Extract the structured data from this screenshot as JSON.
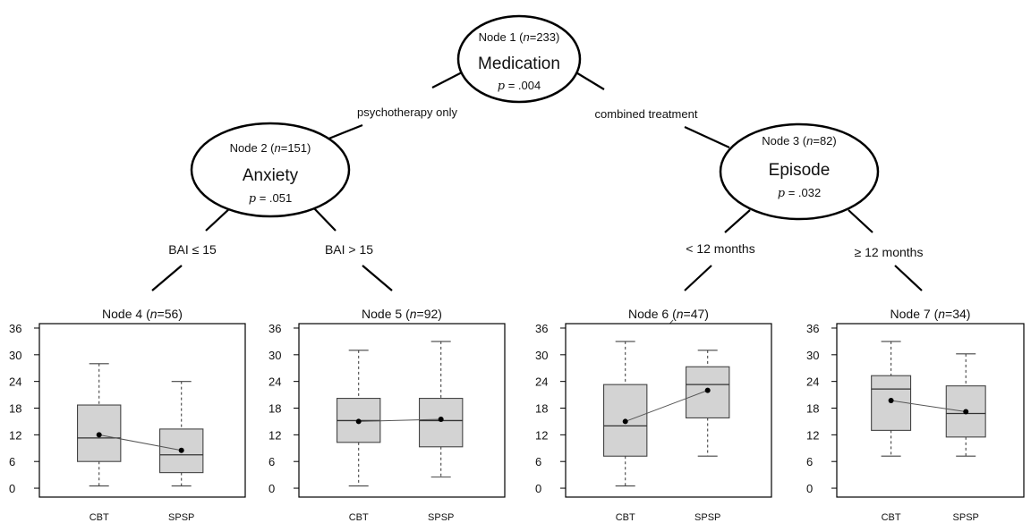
{
  "tree": {
    "root": {
      "node_label": "Node 1",
      "n": "233",
      "variable": "Medication",
      "p_value": ".004"
    },
    "left_split": {
      "label": "psychotherapy only"
    },
    "right_split": {
      "label": "combined treatment"
    },
    "node2": {
      "node_label": "Node 2",
      "n": "151",
      "variable": "Anxiety",
      "p_value": ".051",
      "left_label": "BAI ≤ 15",
      "right_label": "BAI > 15"
    },
    "node3": {
      "node_label": "Node 3",
      "n": "82",
      "variable": "Episode",
      "p_value": ".032",
      "left_label": "< 12 months",
      "right_label": "≥ 12 months"
    }
  },
  "chart_data": [
    {
      "type": "box",
      "node_label": "Node 4",
      "n": "56",
      "categories": [
        "CBT",
        "SPSP"
      ],
      "ylim": [
        -2,
        37
      ],
      "yticks": [
        0,
        6,
        12,
        18,
        24,
        30,
        36
      ],
      "boxes": [
        {
          "name": "CBT",
          "min": 0.5,
          "q1": 6,
          "median": 11.3,
          "q3": 18.7,
          "max": 28,
          "mean": 12
        },
        {
          "name": "SPSP",
          "min": 0.5,
          "q1": 3.5,
          "median": 7.5,
          "q3": 13.3,
          "max": 24,
          "mean": 8.5
        }
      ]
    },
    {
      "type": "box",
      "node_label": "Node 5",
      "n": "92",
      "categories": [
        "CBT",
        "SPSP"
      ],
      "ylim": [
        -2,
        37
      ],
      "yticks": [
        0,
        6,
        12,
        18,
        24,
        30,
        36
      ],
      "boxes": [
        {
          "name": "CBT",
          "min": 0.5,
          "q1": 10.3,
          "median": 15.2,
          "q3": 20.2,
          "max": 31,
          "mean": 15
        },
        {
          "name": "SPSP",
          "min": 2.5,
          "q1": 9.3,
          "median": 15.2,
          "q3": 20.2,
          "max": 33,
          "mean": 15.5
        }
      ]
    },
    {
      "type": "box",
      "node_label": "Node 6",
      "n": "47",
      "categories": [
        "CBT",
        "SPSP"
      ],
      "ylim": [
        -2,
        37
      ],
      "yticks": [
        0,
        6,
        12,
        18,
        24,
        30,
        36
      ],
      "boxes": [
        {
          "name": "CBT",
          "min": 0.5,
          "q1": 7.2,
          "median": 14,
          "q3": 23.3,
          "max": 33,
          "mean": 15
        },
        {
          "name": "SPSP",
          "min": 7.2,
          "q1": 15.8,
          "median": 23.3,
          "q3": 27.3,
          "max": 31,
          "mean": 22
        }
      ]
    },
    {
      "type": "box",
      "node_label": "Node 7",
      "n": "34",
      "categories": [
        "CBT",
        "SPSP"
      ],
      "ylim": [
        -2,
        37
      ],
      "yticks": [
        0,
        6,
        12,
        18,
        24,
        30,
        36
      ],
      "boxes": [
        {
          "name": "CBT",
          "min": 7.2,
          "q1": 13,
          "median": 22.3,
          "q3": 25.3,
          "max": 33,
          "mean": 19.7
        },
        {
          "name": "SPSP",
          "min": 7.2,
          "q1": 11.5,
          "median": 16.8,
          "q3": 23,
          "max": 30.2,
          "mean": 17.2
        }
      ]
    }
  ]
}
